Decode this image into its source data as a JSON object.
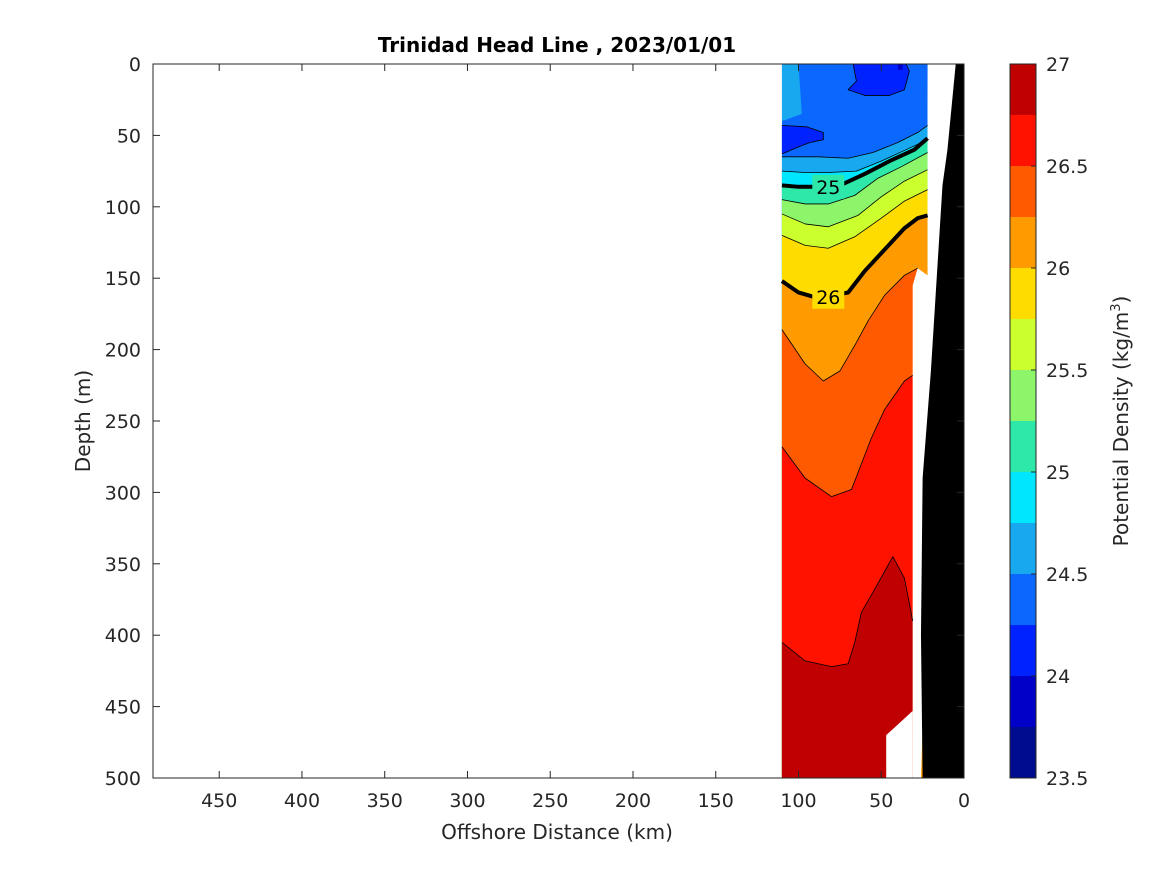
{
  "chart_data": {
    "type": "contour",
    "title": "Trinidad Head Line , 2023/01/01",
    "xlabel": "Offshore Distance (km)",
    "ylabel": "Depth (m)",
    "x_reversed": true,
    "y_reversed": true,
    "xlim": [
      0,
      490
    ],
    "ylim": [
      0,
      500
    ],
    "xticks": [
      450,
      400,
      350,
      300,
      250,
      200,
      150,
      100,
      50,
      0
    ],
    "yticks": [
      0,
      50,
      100,
      150,
      200,
      250,
      300,
      350,
      400,
      450,
      500
    ],
    "colorbar": {
      "label_main": "Potential Density (kg/m",
      "label_sup": "3",
      "label_close": ")",
      "range": [
        23.5,
        27
      ],
      "ticks": [
        "27",
        "26.5",
        "26",
        "25.5",
        "25",
        "24.5",
        "24",
        "23.5"
      ],
      "levels": [
        {
          "min": 23.5,
          "max": 23.75,
          "color": "#000c8f"
        },
        {
          "min": 23.75,
          "max": 24.0,
          "color": "#0000c8"
        },
        {
          "min": 24.0,
          "max": 24.25,
          "color": "#0022ff"
        },
        {
          "min": 24.25,
          "max": 24.5,
          "color": "#0a68ff"
        },
        {
          "min": 24.5,
          "max": 24.75,
          "color": "#18a8f0"
        },
        {
          "min": 24.75,
          "max": 25.0,
          "color": "#00e6ff"
        },
        {
          "min": 25.0,
          "max": 25.25,
          "color": "#2de8a8"
        },
        {
          "min": 25.25,
          "max": 25.5,
          "color": "#8cf56a"
        },
        {
          "min": 25.5,
          "max": 25.75,
          "color": "#ccff2e"
        },
        {
          "min": 25.75,
          "max": 26.0,
          "color": "#ffdc00"
        },
        {
          "min": 26.0,
          "max": 26.25,
          "color": "#ff9b00"
        },
        {
          "min": 26.25,
          "max": 26.5,
          "color": "#ff5a00"
        },
        {
          "min": 26.5,
          "max": 26.75,
          "color": "#ff1200"
        },
        {
          "min": 26.75,
          "max": 27.0,
          "color": "#c00000"
        }
      ]
    },
    "labeled_contours": [
      {
        "level": 25,
        "label": "25",
        "at": {
          "x": 82,
          "depth": 86
        }
      },
      {
        "level": 26,
        "label": "26",
        "at": {
          "x": 82,
          "depth": 163
        }
      }
    ],
    "contour_lines": [
      {
        "level": 24.25,
        "points": [
          [
            110,
            63
          ],
          [
            100,
            58
          ],
          [
            93,
            55
          ],
          [
            85,
            53
          ],
          [
            85,
            48
          ],
          [
            95,
            44
          ],
          [
            110,
            43
          ]
        ]
      },
      {
        "level": 24.25,
        "points": [
          [
            67,
            0
          ],
          [
            65,
            12
          ],
          [
            70,
            18
          ],
          [
            60,
            22
          ],
          [
            45,
            22
          ],
          [
            36,
            18
          ],
          [
            33,
            5
          ],
          [
            35,
            0
          ]
        ]
      },
      {
        "level": 24.5,
        "points": [
          [
            110,
            65
          ],
          [
            100,
            65
          ],
          [
            88,
            65
          ],
          [
            70,
            66
          ],
          [
            55,
            62
          ],
          [
            40,
            55
          ],
          [
            28,
            48
          ],
          [
            22,
            43
          ]
        ]
      },
      {
        "level": 24.75,
        "points": [
          [
            110,
            75
          ],
          [
            96,
            76
          ],
          [
            82,
            76
          ],
          [
            65,
            75
          ],
          [
            50,
            68
          ],
          [
            35,
            60
          ],
          [
            22,
            53
          ]
        ]
      },
      {
        "level": 25.0,
        "points": [
          [
            110,
            85
          ],
          [
            100,
            86
          ],
          [
            90,
            86
          ],
          [
            75,
            85
          ],
          [
            60,
            77
          ],
          [
            45,
            68
          ],
          [
            30,
            60
          ],
          [
            22,
            52
          ]
        ]
      },
      {
        "level": 25.25,
        "points": [
          [
            110,
            95
          ],
          [
            96,
            98
          ],
          [
            82,
            98
          ],
          [
            66,
            92
          ],
          [
            52,
            80
          ],
          [
            38,
            72
          ],
          [
            22,
            62
          ]
        ]
      },
      {
        "level": 25.5,
        "points": [
          [
            110,
            105
          ],
          [
            96,
            112
          ],
          [
            82,
            114
          ],
          [
            64,
            106
          ],
          [
            50,
            93
          ],
          [
            36,
            82
          ],
          [
            22,
            74
          ]
        ]
      },
      {
        "level": 25.75,
        "points": [
          [
            110,
            120
          ],
          [
            96,
            127
          ],
          [
            82,
            129
          ],
          [
            66,
            121
          ],
          [
            50,
            108
          ],
          [
            36,
            96
          ],
          [
            22,
            88
          ]
        ]
      },
      {
        "level": 26.0,
        "points": [
          [
            110,
            152
          ],
          [
            100,
            160
          ],
          [
            88,
            164
          ],
          [
            70,
            160
          ],
          [
            60,
            145
          ],
          [
            48,
            130
          ],
          [
            36,
            115
          ],
          [
            28,
            108
          ],
          [
            22,
            106
          ]
        ]
      },
      {
        "level": 26.25,
        "points": [
          [
            110,
            186
          ],
          [
            96,
            210
          ],
          [
            85,
            222
          ],
          [
            75,
            215
          ],
          [
            65,
            195
          ],
          [
            58,
            180
          ],
          [
            48,
            162
          ],
          [
            36,
            148
          ],
          [
            28,
            143
          ]
        ]
      },
      {
        "level": 26.5,
        "points": [
          [
            110,
            268
          ],
          [
            96,
            290
          ],
          [
            80,
            303
          ],
          [
            68,
            298
          ],
          [
            62,
            280
          ],
          [
            56,
            262
          ],
          [
            48,
            242
          ],
          [
            36,
            222
          ],
          [
            31,
            218
          ]
        ]
      },
      {
        "level": 26.75,
        "points": [
          [
            110,
            405
          ],
          [
            96,
            418
          ],
          [
            80,
            422
          ],
          [
            70,
            420
          ],
          [
            66,
            405
          ],
          [
            62,
            384
          ],
          [
            55,
            370
          ],
          [
            43,
            345
          ],
          [
            36,
            360
          ],
          [
            31,
            390
          ]
        ]
      }
    ],
    "filled_regions": [
      {
        "name": "region-24.5-24.75",
        "color": "#18a8f0",
        "points": [
          [
            110,
            0
          ],
          [
            100,
            0
          ],
          [
            98,
            35
          ],
          [
            110,
            40
          ]
        ]
      },
      {
        "name": "region-24.0-24.25-right",
        "color": "#0022ff",
        "points": [
          [
            67,
            0
          ],
          [
            35,
            0
          ],
          [
            33,
            5
          ],
          [
            36,
            18
          ],
          [
            45,
            22
          ],
          [
            60,
            22
          ],
          [
            70,
            18
          ],
          [
            65,
            12
          ]
        ]
      },
      {
        "name": "region-24.0-24.25-left",
        "color": "#0022ff",
        "points": [
          [
            110,
            43
          ],
          [
            95,
            44
          ],
          [
            85,
            48
          ],
          [
            85,
            53
          ],
          [
            93,
            55
          ],
          [
            100,
            58
          ],
          [
            110,
            63
          ]
        ]
      },
      {
        "name": "region-23.75-24",
        "color": "#0000c8",
        "points": [
          [
            40,
            0
          ],
          [
            37,
            0
          ],
          [
            37,
            4
          ],
          [
            40,
            4
          ]
        ]
      }
    ],
    "bottom_mask": [
      [
        0,
        0
      ],
      [
        5,
        0
      ],
      [
        10,
        60
      ],
      [
        13,
        85
      ],
      [
        20,
        215
      ],
      [
        25,
        290
      ],
      [
        26,
        400
      ],
      [
        25,
        500
      ],
      [
        0,
        500
      ]
    ],
    "data_gaps": [
      {
        "points": [
          [
            22,
            0
          ],
          [
            22,
            148
          ],
          [
            28,
            143
          ],
          [
            31,
            155
          ],
          [
            31,
            500
          ],
          [
            26,
            500
          ],
          [
            24,
            430
          ],
          [
            22,
            300
          ],
          [
            20,
            215
          ]
        ]
      },
      {
        "points": [
          [
            47,
            500
          ],
          [
            47,
            470
          ],
          [
            31,
            453
          ],
          [
            31,
            500
          ]
        ]
      }
    ],
    "data_extent_x": [
      22,
      110
    ]
  }
}
